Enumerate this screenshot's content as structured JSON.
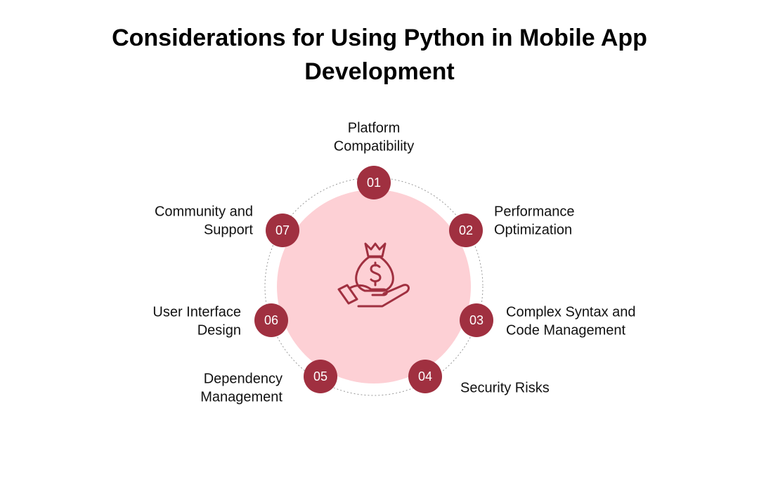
{
  "title": [
    "Considerations for Using Python in Mobile App",
    "Development"
  ],
  "nodes": [
    {
      "number": "01",
      "label": [
        "Platform",
        "Compatibility"
      ]
    },
    {
      "number": "02",
      "label": [
        "Performance",
        "Optimization"
      ]
    },
    {
      "number": "03",
      "label": [
        "Complex Syntax and",
        "Code Management"
      ]
    },
    {
      "number": "04",
      "label": [
        "Security Risks"
      ]
    },
    {
      "number": "05",
      "label": [
        "Dependency",
        "Management"
      ]
    },
    {
      "number": "06",
      "label": [
        "User Interface",
        "Design"
      ]
    },
    {
      "number": "07",
      "label": [
        "Community and",
        "Support"
      ]
    }
  ]
}
